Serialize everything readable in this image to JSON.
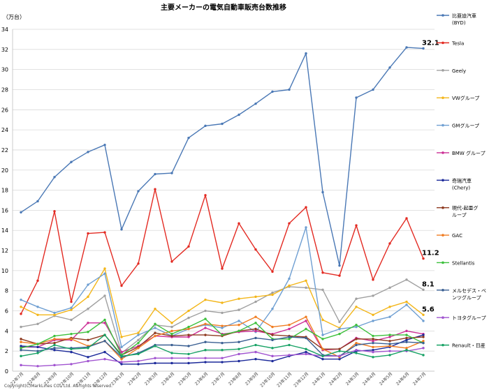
{
  "chart_data": {
    "type": "line",
    "title": "主要メーカーの電気自動車販売台数推移",
    "ylabel": "（万台）",
    "ylim": [
      0,
      34
    ],
    "yticks": [
      0,
      2,
      4,
      6,
      8,
      10,
      12,
      14,
      16,
      18,
      20,
      22,
      24,
      26,
      28,
      30,
      32,
      34
    ],
    "grid": true,
    "legend_position": "right",
    "categories": [
      "22年7月",
      "22年8月",
      "22年9月",
      "22年10月",
      "22年11月",
      "22年12月",
      "23年1月",
      "23年2月",
      "23年3月",
      "23年4月",
      "23年5月",
      "23年6月",
      "23年7月",
      "23年8月",
      "23年9月",
      "23年10月",
      "23年11月",
      "23年12月",
      "24年1月",
      "24年2月",
      "24年3月",
      "24年4月",
      "24年5月",
      "24年6月",
      "24年7月"
    ],
    "series": [
      {
        "name": "比亜迪汽車",
        "name2": "(BYD)",
        "color": "#4a78b5",
        "values": [
          15.8,
          16.9,
          19.3,
          20.8,
          21.8,
          22.5,
          14.1,
          17.9,
          19.6,
          19.7,
          23.2,
          24.4,
          24.6,
          25.5,
          26.6,
          27.8,
          28.0,
          31.6,
          17.8,
          10.5,
          27.2,
          28.0,
          30.2,
          32.2,
          32.1
        ]
      },
      {
        "name": "Tesla",
        "color": "#e32a22",
        "values": [
          5.7,
          9.0,
          15.9,
          6.9,
          13.7,
          13.8,
          8.5,
          10.7,
          18.1,
          10.9,
          12.4,
          17.5,
          10.2,
          14.7,
          12.1,
          9.9,
          14.7,
          16.3,
          9.8,
          9.5,
          14.5,
          9.1,
          12.7,
          15.2,
          11.2
        ]
      },
      {
        "name": "Geely",
        "color": "#a0a0a0",
        "values": [
          4.4,
          4.7,
          5.5,
          5.1,
          6.2,
          7.5,
          1.8,
          3.1,
          4.6,
          4.4,
          5.3,
          6.0,
          5.8,
          6.1,
          6.9,
          7.8,
          8.4,
          8.3,
          8.1,
          4.9,
          7.2,
          7.5,
          8.3,
          9.1,
          8.1
        ]
      },
      {
        "name": "VWグループ",
        "color": "#f3b61a",
        "values": [
          6.4,
          5.6,
          5.6,
          6.1,
          7.4,
          10.2,
          3.4,
          3.8,
          6.2,
          4.8,
          6.0,
          7.1,
          6.8,
          7.2,
          7.4,
          7.6,
          8.5,
          9.0,
          5.1,
          4.3,
          6.4,
          5.6,
          6.4,
          6.9,
          5.6
        ]
      },
      {
        "name": "GMグループ",
        "color": "#6f9fd2",
        "values": [
          7.1,
          6.4,
          5.8,
          6.3,
          8.6,
          9.7,
          2.4,
          3.6,
          4.3,
          3.5,
          4.2,
          4.6,
          4.3,
          5.0,
          3.9,
          6.2,
          9.2,
          14.3,
          3.6,
          4.2,
          4.4,
          5.0,
          5.4,
          6.6,
          5.0
        ]
      },
      {
        "name": "BMW グループ",
        "color": "#cc2e95",
        "values": [
          2.4,
          2.4,
          3.1,
          3.1,
          4.8,
          4.8,
          1.9,
          2.5,
          3.5,
          3.4,
          3.4,
          4.3,
          3.7,
          3.9,
          4.0,
          3.7,
          4.2,
          5.0,
          2.1,
          2.2,
          3.3,
          3.0,
          3.4,
          4.0,
          3.7
        ]
      },
      {
        "name": "奇瑞汽車",
        "name2": "(Chery)",
        "color": "#1c2a9a",
        "values": [
          2.5,
          2.4,
          2.1,
          1.9,
          1.4,
          1.9,
          0.7,
          0.7,
          0.8,
          0.8,
          0.8,
          0.9,
          0.9,
          1.0,
          1.2,
          1.0,
          1.5,
          1.9,
          1.2,
          1.2,
          2.0,
          2.1,
          2.4,
          3.1,
          3.6
        ]
      },
      {
        "name": "現代-起亜グ",
        "name2": "ループ",
        "color": "#8e3a20",
        "values": [
          3.2,
          2.7,
          2.8,
          3.3,
          3.1,
          3.6,
          1.6,
          2.4,
          3.8,
          3.5,
          3.6,
          3.6,
          3.5,
          4.0,
          4.2,
          3.6,
          3.5,
          3.4,
          2.2,
          2.2,
          3.2,
          3.2,
          3.0,
          3.3,
          3.4
        ]
      },
      {
        "name": "GAC",
        "color": "#f07d22",
        "values": [
          2.9,
          2.7,
          3.2,
          3.2,
          2.5,
          3.0,
          1.2,
          2.3,
          3.5,
          4.0,
          4.2,
          4.7,
          4.5,
          4.6,
          5.4,
          4.4,
          4.6,
          5.4,
          2.2,
          1.4,
          2.8,
          2.4,
          2.5,
          2.3,
          3.0
        ]
      },
      {
        "name": "Stellantis",
        "color": "#3cc03c",
        "values": [
          2.3,
          2.7,
          3.5,
          3.7,
          3.9,
          5.1,
          1.6,
          2.8,
          4.7,
          3.7,
          4.4,
          5.2,
          3.6,
          4.0,
          4.8,
          3.2,
          3.2,
          4.2,
          3.2,
          3.7,
          4.6,
          3.5,
          3.6,
          3.6,
          2.8
        ]
      },
      {
        "name": "メルセデス・ベ",
        "name2": "ンツグループ",
        "color": "#3a5f92",
        "values": [
          2.1,
          2.0,
          2.3,
          2.3,
          2.4,
          3.0,
          1.4,
          1.8,
          2.6,
          2.6,
          2.5,
          2.9,
          2.8,
          2.9,
          3.3,
          3.1,
          3.4,
          3.3,
          1.6,
          1.5,
          2.6,
          2.8,
          2.7,
          2.9,
          2.8
        ]
      },
      {
        "name": "トヨタグループ",
        "color": "#a154d0",
        "values": [
          0.6,
          0.5,
          0.6,
          0.7,
          1.0,
          1.2,
          0.9,
          1.0,
          1.3,
          1.3,
          1.3,
          1.3,
          1.3,
          1.7,
          1.9,
          1.5,
          1.6,
          1.7,
          1.5,
          1.5,
          2.1,
          1.9,
          2.0,
          2.0,
          2.3
        ]
      },
      {
        "name": "Renault・日産",
        "color": "#17a265",
        "values": [
          1.5,
          1.8,
          2.6,
          2.2,
          2.3,
          3.6,
          1.5,
          1.7,
          2.5,
          1.8,
          1.7,
          2.1,
          2.1,
          2.2,
          2.6,
          2.3,
          2.6,
          2.2,
          1.5,
          2.0,
          1.8,
          1.4,
          1.6,
          2.1,
          1.6
        ]
      }
    ],
    "annotations": [
      {
        "label": "32.1",
        "series": "比亜迪汽車",
        "index": 24
      },
      {
        "label": "11.2",
        "series": "Tesla",
        "index": 24
      },
      {
        "label": "8.1",
        "series": "Geely",
        "index": 24
      },
      {
        "label": "5.6",
        "series": "VWグループ",
        "index": 24
      }
    ]
  },
  "footer": {
    "copyright": "Copyright(C)MarkLines CO., Ltd. All rights reserved."
  }
}
